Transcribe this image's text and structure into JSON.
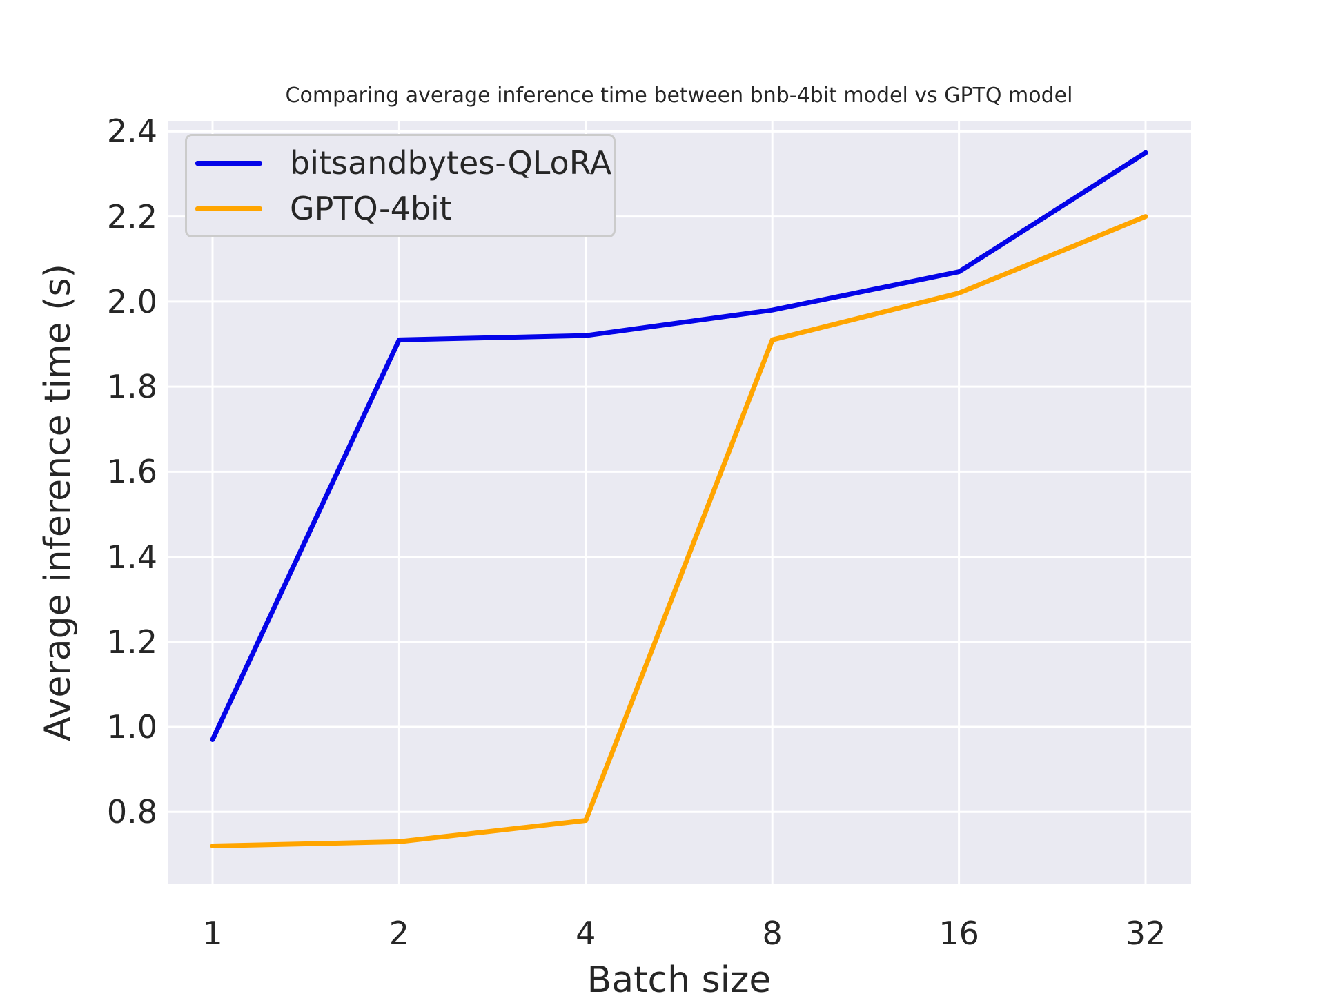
{
  "chart_data": {
    "type": "line",
    "title": "Comparing average inference time between bnb-4bit model vs GPTQ model",
    "xlabel": "Batch size",
    "ylabel": "Average inference time (s)",
    "x_categories": [
      "1",
      "2",
      "4",
      "8",
      "16",
      "32"
    ],
    "x_values": [
      1,
      2,
      4,
      8,
      16,
      32
    ],
    "series": [
      {
        "name": "bitsandbytes-QLoRA",
        "color": "#0404e8",
        "values": [
          0.97,
          1.91,
          1.92,
          1.98,
          2.07,
          2.35
        ]
      },
      {
        "name": "GPTQ-4bit",
        "color": "#ffa500",
        "values": [
          0.72,
          0.73,
          0.78,
          1.91,
          2.02,
          2.2
        ]
      }
    ],
    "yticks": [
      "0.8",
      "1.0",
      "1.2",
      "1.4",
      "1.6",
      "1.8",
      "2.0",
      "2.2",
      "2.4"
    ],
    "ytick_values": [
      0.8,
      1.0,
      1.2,
      1.4,
      1.6,
      1.8,
      2.0,
      2.2,
      2.4
    ],
    "ylim": [
      0.63,
      2.425
    ],
    "grid": true,
    "legend_position": "upper left",
    "plot_bg_color": "#eaeaf2",
    "grid_color": "#ffffff",
    "text_color": "#262626"
  }
}
